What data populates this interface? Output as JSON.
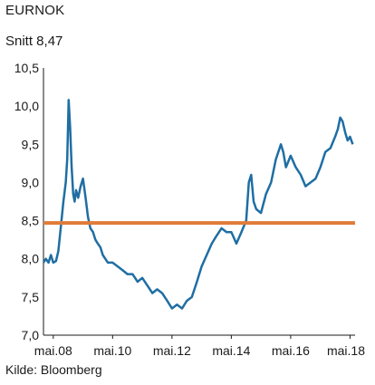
{
  "chart_data": {
    "type": "line",
    "title": "EURNOK",
    "subtitle": "Snitt 8,47",
    "source": "Kilde: Bloomberg",
    "ylim": [
      7.0,
      10.5
    ],
    "y_ticks": [
      "7,0",
      "7,5",
      "8,0",
      "8,5",
      "9,0",
      "9,5",
      "10,0",
      "10,5"
    ],
    "y_tick_values": [
      7.0,
      7.5,
      8.0,
      8.5,
      9.0,
      9.5,
      10.0,
      10.5
    ],
    "x_ticks": [
      "mai.08",
      "mai.10",
      "mai.12",
      "mai.14",
      "mai.16",
      "mai.18"
    ],
    "x_tick_values": [
      2008.33,
      2010.33,
      2012.33,
      2014.33,
      2016.33,
      2018.33
    ],
    "grid": false,
    "colors": {
      "series": "#1f6ea3",
      "average": "#e07b39"
    },
    "average": 8.47,
    "series": [
      {
        "x": [
          2008.0,
          2008.08,
          2008.17,
          2008.25,
          2008.33,
          2008.42,
          2008.5,
          2008.58,
          2008.67,
          2008.75,
          2008.8,
          2008.85,
          2008.9,
          2008.95,
          2009.0,
          2009.05,
          2009.1,
          2009.17,
          2009.25,
          2009.33,
          2009.42,
          2009.5,
          2009.58,
          2009.67,
          2009.75,
          2009.83,
          2009.92,
          2010.0,
          2010.17,
          2010.33,
          2010.5,
          2010.67,
          2010.83,
          2011.0,
          2011.17,
          2011.33,
          2011.5,
          2011.67,
          2011.83,
          2012.0,
          2012.17,
          2012.33,
          2012.5,
          2012.67,
          2012.83,
          2013.0,
          2013.17,
          2013.33,
          2013.5,
          2013.67,
          2013.83,
          2014.0,
          2014.17,
          2014.33,
          2014.5,
          2014.67,
          2014.83,
          2014.92,
          2015.0,
          2015.08,
          2015.17,
          2015.33,
          2015.5,
          2015.67,
          2015.83,
          2016.0,
          2016.08,
          2016.17,
          2016.33,
          2016.5,
          2016.67,
          2016.83,
          2017.0,
          2017.17,
          2017.33,
          2017.5,
          2017.67,
          2017.83,
          2017.92,
          2018.0,
          2018.08,
          2018.17,
          2018.25,
          2018.33,
          2018.42
        ],
        "y": [
          7.95,
          8.0,
          7.95,
          8.05,
          7.95,
          7.97,
          8.1,
          8.4,
          8.75,
          9.0,
          9.3,
          10.08,
          9.7,
          9.2,
          8.85,
          8.75,
          8.9,
          8.8,
          8.95,
          9.05,
          8.8,
          8.55,
          8.4,
          8.35,
          8.25,
          8.2,
          8.15,
          8.05,
          7.95,
          7.95,
          7.9,
          7.85,
          7.8,
          7.8,
          7.7,
          7.75,
          7.65,
          7.55,
          7.6,
          7.55,
          7.45,
          7.35,
          7.4,
          7.35,
          7.45,
          7.5,
          7.7,
          7.9,
          8.05,
          8.2,
          8.3,
          8.4,
          8.35,
          8.35,
          8.2,
          8.35,
          8.5,
          9.0,
          9.1,
          8.75,
          8.65,
          8.6,
          8.85,
          9.0,
          9.3,
          9.5,
          9.4,
          9.2,
          9.35,
          9.2,
          9.1,
          8.95,
          9.0,
          9.05,
          9.2,
          9.4,
          9.45,
          9.6,
          9.7,
          9.85,
          9.8,
          9.65,
          9.55,
          9.6,
          9.5
        ]
      }
    ]
  }
}
